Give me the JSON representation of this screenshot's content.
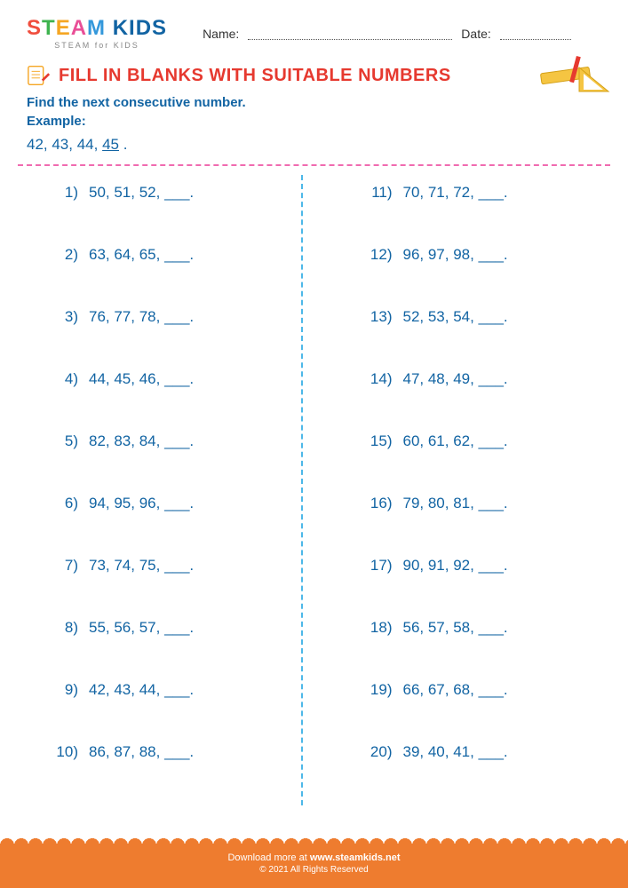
{
  "logo": {
    "text_steam": "STEAM",
    "text_kids": " KIDS",
    "color_s": "#f04e3e",
    "color_t": "#3eb34f",
    "color_e": "#f5a623",
    "color_a": "#e94f97",
    "color_m": "#3498db",
    "color_kids": "#1264a3",
    "subtitle": "STEAM for KIDS"
  },
  "header": {
    "name_label": "Name:",
    "date_label": "Date:"
  },
  "title": "FILL IN BLANKS WITH SUITABLE NUMBERS",
  "instruction": "Find the next consecutive number.",
  "example_label": "Example:",
  "example": {
    "prefix": "42, 43, 44, ",
    "answer": "45",
    "suffix": " ."
  },
  "blank": "___",
  "problems_left": [
    {
      "n": "1)",
      "seq": "50, 51, 52, "
    },
    {
      "n": "2)",
      "seq": "63, 64, 65, "
    },
    {
      "n": "3)",
      "seq": "76, 77, 78, "
    },
    {
      "n": "4)",
      "seq": "44, 45, 46, "
    },
    {
      "n": "5)",
      "seq": "82, 83, 84, "
    },
    {
      "n": "6)",
      "seq": "94, 95, 96, "
    },
    {
      "n": "7)",
      "seq": "73, 74, 75, "
    },
    {
      "n": "8)",
      "seq": "55, 56, 57, "
    },
    {
      "n": "9)",
      "seq": "42, 43, 44, "
    },
    {
      "n": "10)",
      "seq": "86, 87, 88, "
    }
  ],
  "problems_right": [
    {
      "n": "11)",
      "seq": "70, 71, 72, "
    },
    {
      "n": "12)",
      "seq": "96, 97, 98, "
    },
    {
      "n": "13)",
      "seq": "52, 53, 54, "
    },
    {
      "n": "14)",
      "seq": "47, 48, 49, "
    },
    {
      "n": "15)",
      "seq": "60, 61, 62, "
    },
    {
      "n": "16)",
      "seq": "79, 80, 81, "
    },
    {
      "n": "17)",
      "seq": "90, 91, 92, "
    },
    {
      "n": "18)",
      "seq": "56, 57, 58, "
    },
    {
      "n": "19)",
      "seq": "66, 67, 68, "
    },
    {
      "n": "20)",
      "seq": "39, 40, 41, "
    }
  ],
  "footer": {
    "download": "Download more at ",
    "url": "www.steamkids.net",
    "copyright": "© 2021 All Rights Reserved"
  },
  "colors": {
    "title": "#e6392f",
    "text": "#1264a3",
    "pink_dash": "#f06bb0",
    "blue_dash": "#4db8e8",
    "footer_bg": "#ee7c2f"
  }
}
